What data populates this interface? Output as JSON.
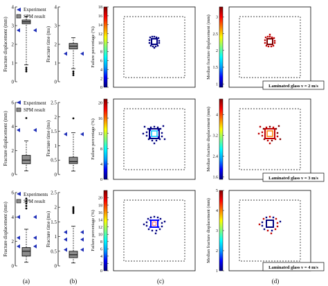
{
  "colors": {
    "experiment": "#1f2fb8",
    "box_fill": "#8c8c8c",
    "cmap": [
      "#00007f",
      "#0000ff",
      "#00a0ff",
      "#00ffff",
      "#80ff80",
      "#ffff00",
      "#ff8000",
      "#ff0000",
      "#7f0000"
    ]
  },
  "panel_labels": [
    "(a)",
    "(b)",
    "(c)",
    "(d)"
  ],
  "legend": {
    "row1": [
      "Experiment",
      "SPM result"
    ],
    "row2": [
      "Experiment",
      "SPM result"
    ],
    "row3": [
      "Experiments",
      "SPM result"
    ]
  },
  "scenario_labels": [
    "Laminated glass v = 2 m/s",
    "Laminated glass v = 3 m/s",
    "Laminated glass v = 4 m/s"
  ],
  "chart_data": [
    {
      "type": "box",
      "panel": "a-row1",
      "ylabel": "Fracture displacement (mm)",
      "ylim": [
        0,
        4
      ],
      "yticks": [
        "0",
        "1",
        "2",
        "3",
        "4"
      ],
      "box": {
        "q1": 3.1,
        "median": 3.2,
        "q3": 3.3,
        "whisker_low": 0.9,
        "whisker_high": 3.5,
        "outliers": [
          0.55,
          0.65,
          0.75
        ]
      },
      "experiment": [
        2.75
      ]
    },
    {
      "type": "box",
      "panel": "b-row1",
      "ylabel": "Fracture time (ms)",
      "ylim": [
        0,
        4
      ],
      "yticks": [
        "0",
        "1",
        "2",
        "3",
        "4"
      ],
      "box": {
        "q1": 1.75,
        "median": 1.9,
        "q3": 2.05,
        "whisker_low": 0.7,
        "whisker_high": 2.35,
        "outliers": [
          0.35,
          0.45,
          0.55
        ]
      },
      "experiment": [
        1.5
      ]
    },
    {
      "type": "heatmap",
      "panel": "c-row1",
      "colorbar_label": "Failure percentage (%)",
      "colorbar_range": [
        0,
        18
      ],
      "colorbar_ticks": [
        "0",
        "2",
        "4",
        "6",
        "8",
        "10",
        "12",
        "14",
        "16",
        "18"
      ]
    },
    {
      "type": "heatmap",
      "panel": "d-row1",
      "colorbar_label": "Median fracture displacement (mm)",
      "colorbar_range": [
        0.9,
        3.3
      ],
      "colorbar_ticks": [
        "1",
        "1.5",
        "2",
        "2.5",
        "3"
      ]
    },
    {
      "type": "box",
      "panel": "a-row2",
      "ylabel": "Fracture displacement (mm)",
      "ylim": [
        0,
        6
      ],
      "yticks": [
        "0",
        "2",
        "4",
        "6"
      ],
      "box": {
        "q1": 0.9,
        "median": 1.2,
        "q3": 1.6,
        "whisker_low": 0.3,
        "whisker_high": 2.8,
        "outliers": [
          4.7
        ]
      },
      "experiment": [
        3.7
      ]
    },
    {
      "type": "box",
      "panel": "b-row2",
      "ylabel": "Fracture time (ms)",
      "ylim": [
        0,
        2.5
      ],
      "yticks": [
        "0",
        "0.5",
        "1",
        "1.5",
        "2",
        "2.5"
      ],
      "box": {
        "q1": 0.38,
        "median": 0.45,
        "q3": 0.6,
        "whisker_low": 0.12,
        "whisker_high": 1.45,
        "outliers": [
          1.95
        ]
      },
      "experiment": [
        1.4
      ]
    },
    {
      "type": "heatmap",
      "panel": "c-row2",
      "colorbar_label": "Failure percentage (%)",
      "colorbar_range": [
        0,
        21
      ],
      "colorbar_ticks": [
        "0",
        "4",
        "8",
        "12",
        "16",
        "20"
      ]
    },
    {
      "type": "heatmap",
      "panel": "d-row2",
      "colorbar_label": "Median fracture displacement (mm)",
      "colorbar_range": [
        1.5,
        4.6
      ],
      "colorbar_ticks": [
        "1.6",
        "2.4",
        "3.2",
        "4"
      ]
    },
    {
      "type": "box",
      "panel": "a-row3",
      "ylabel": "Fracture displacement (mm)",
      "ylim": [
        0,
        6
      ],
      "yticks": [
        "0",
        "2",
        "4",
        "6"
      ],
      "box": {
        "q1": 0.8,
        "median": 1.2,
        "q3": 1.5,
        "whisker_low": 0.3,
        "whisker_high": 3.0,
        "outliers": [
          4.7,
          4.9,
          5.1,
          5.3,
          5.5
        ]
      },
      "experiment": [
        4.0,
        1.6,
        2.3
      ]
    },
    {
      "type": "box",
      "panel": "b-row3",
      "ylabel": "Fracture time (ms)",
      "ylim": [
        0,
        2.5
      ],
      "yticks": [
        "0",
        "0.5",
        "1",
        "1.5",
        "2",
        "2.5"
      ],
      "box": {
        "q1": 0.28,
        "median": 0.38,
        "q3": 0.5,
        "whisker_low": 0.1,
        "whisker_high": 1.35,
        "outliers": [
          1.8,
          1.85,
          1.9,
          1.95,
          2.0
        ]
      },
      "experiment": [
        1.15,
        0.9,
        0.55
      ]
    },
    {
      "type": "heatmap",
      "panel": "c-row3",
      "colorbar_label": "Failure percentage (%)",
      "colorbar_range": [
        0,
        22
      ],
      "colorbar_ticks": [
        "0",
        "2",
        "4",
        "6",
        "8",
        "10",
        "12",
        "14",
        "16",
        "18",
        "20"
      ]
    },
    {
      "type": "heatmap",
      "panel": "d-row3",
      "colorbar_label": "Median fracture displacement (mm)",
      "colorbar_range": [
        1,
        5
      ],
      "colorbar_ticks": [
        "1",
        "2",
        "3",
        "4",
        "5"
      ]
    }
  ]
}
